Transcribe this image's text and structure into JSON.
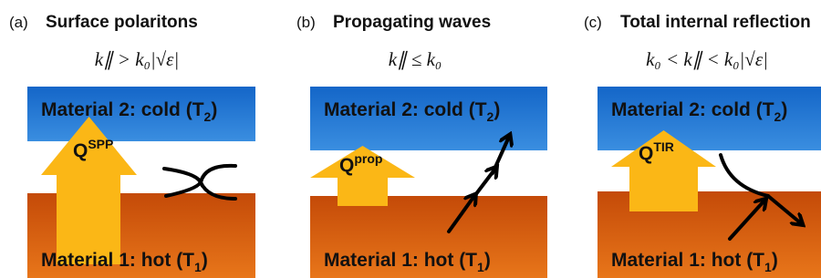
{
  "panels": [
    {
      "label": "(a)",
      "title": "Surface polaritons",
      "condition": "k∥ > k₀|√ε|",
      "top": {
        "text": "Material 2: cold (T",
        "sub": "2",
        "end": ")"
      },
      "bottom": {
        "text": "Material 1: hot (T",
        "sub": "1",
        "end": ")"
      },
      "flux": {
        "symbol": "Q",
        "sup": "SPP"
      }
    },
    {
      "label": "(b)",
      "title": "Propagating waves",
      "condition": "k∥ ≤ k₀",
      "top": {
        "text": "Material 2: cold (T",
        "sub": "2",
        "end": ")"
      },
      "bottom": {
        "text": "Material 1: hot (T",
        "sub": "1",
        "end": ")"
      },
      "flux": {
        "symbol": "Q",
        "sup": "prop"
      }
    },
    {
      "label": "(c)",
      "title": "Total internal reflection",
      "condition": "k₀ < k∥ < k₀|√ε|",
      "top": {
        "text": "Material 2: cold (T",
        "sub": "2",
        "end": ")"
      },
      "bottom": {
        "text": "Material 1: hot (T",
        "sub": "1",
        "end": ")"
      },
      "flux": {
        "symbol": "Q",
        "sup": "TIR"
      }
    }
  ]
}
